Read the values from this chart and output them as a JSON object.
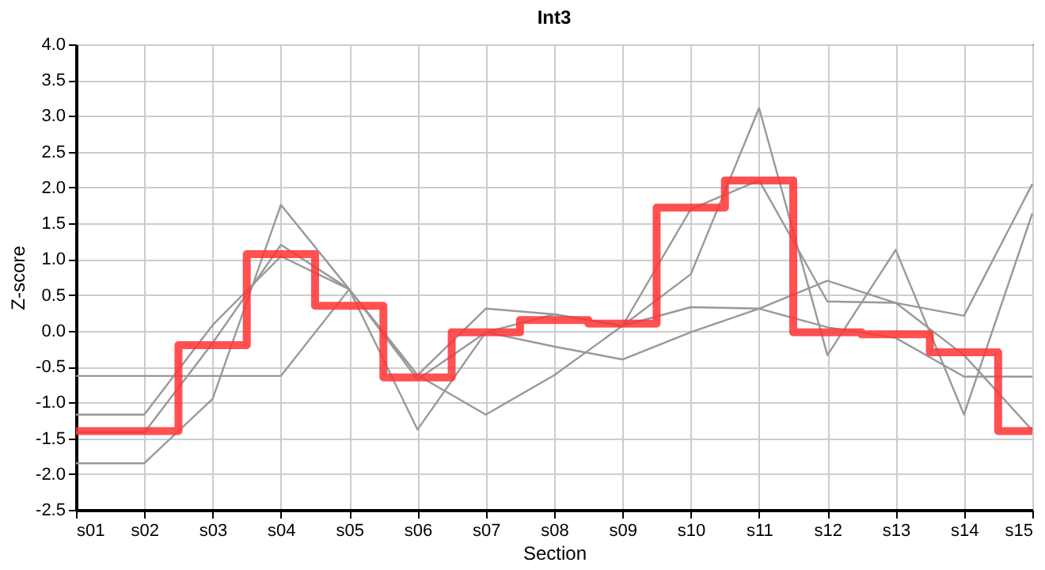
{
  "chart_data": {
    "type": "line",
    "title": "Int3",
    "xlabel": "Section",
    "ylabel": "Z-score",
    "categories": [
      "s01",
      "s02",
      "s03",
      "s04",
      "s05",
      "s06",
      "s07",
      "s08",
      "s09",
      "s10",
      "s11",
      "s12",
      "s13",
      "s14",
      "s15"
    ],
    "series": [
      {
        "color": "#999999",
        "values": [
          -1.17,
          -1.17,
          0.08,
          1.04,
          0.58,
          -0.62,
          0.31,
          0.23,
          0.07,
          1.7,
          2.1,
          0.41,
          0.39,
          0.21,
          2.05
        ]
      },
      {
        "color": "#999999",
        "values": [
          -1.42,
          -1.42,
          -0.17,
          1.2,
          0.58,
          -0.68,
          -0.02,
          0.23,
          0.07,
          0.79,
          3.11,
          -0.34,
          1.13,
          -1.17,
          1.64
        ]
      },
      {
        "color": "#999999",
        "values": [
          -1.85,
          -1.85,
          -0.95,
          1.76,
          0.58,
          -1.38,
          -0.02,
          -0.22,
          -0.4,
          -0.02,
          0.31,
          0.7,
          0.39,
          -0.34,
          -1.39
        ]
      },
      {
        "color": "#999999",
        "values": [
          -0.63,
          -0.63,
          -0.63,
          -0.63,
          0.58,
          -0.62,
          -1.17,
          -0.62,
          0.07,
          0.33,
          0.31,
          0.05,
          -0.1,
          -0.64,
          -0.64
        ]
      },
      {
        "type": "step",
        "color": "#ff3333",
        "values": [
          -1.4,
          -1.4,
          -0.2,
          1.07,
          0.35,
          -0.65,
          -0.02,
          0.15,
          0.1,
          1.72,
          2.1,
          -0.02,
          -0.05,
          -0.3,
          -1.4
        ]
      }
    ],
    "ylim": [
      -2.5,
      4.0
    ],
    "yticks": [
      {
        "value": -2.5,
        "label": "-2.5"
      },
      {
        "value": -2,
        "label": "-2.0"
      },
      {
        "value": -1.5,
        "label": "-1.5"
      },
      {
        "value": -1,
        "label": "-1.0"
      },
      {
        "value": -0.5,
        "label": "-0.5"
      },
      {
        "value": 0,
        "label": "0.0"
      },
      {
        "value": 0.5,
        "label": "0.5"
      },
      {
        "value": 1,
        "label": "1.0"
      },
      {
        "value": 1.5,
        "label": "1.5"
      },
      {
        "value": 2,
        "label": "2.0"
      },
      {
        "value": 2.5,
        "label": "2.5"
      },
      {
        "value": 3,
        "label": "3.0"
      },
      {
        "value": 3.5,
        "label": "3.5"
      },
      {
        "value": 4,
        "label": "4.0"
      }
    ],
    "grid": true,
    "marker": "none",
    "line_style": "solid"
  }
}
